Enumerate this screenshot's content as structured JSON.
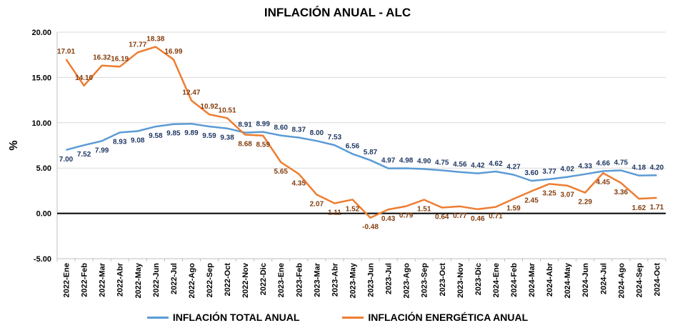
{
  "chart_data": {
    "type": "line",
    "title": "INFLACIÓN ANUAL - ALC",
    "ylabel": "%",
    "xlabel": "",
    "ylim": [
      -5,
      20
    ],
    "yticks": [
      "20.00",
      "15.00",
      "10.00",
      "5.00",
      "0.00",
      "-5.00"
    ],
    "categories": [
      "2022-Ene",
      "2022-Feb",
      "2022-Mar",
      "2022-Abr",
      "2022-May",
      "2022-Jun",
      "2022-Jul",
      "2022-Ago",
      "2022-Sep",
      "2022-Oct",
      "2022-Nov",
      "2022-Dic",
      "2023-Ene",
      "2023-Feb",
      "2023-Mar",
      "2023-Abr",
      "2023-May",
      "2023-Jun",
      "2023-Jul",
      "2023-Ago",
      "2023-Sep",
      "2023-Oct",
      "2023-Nov",
      "2023-Dic",
      "2024-Ene",
      "2024-Feb",
      "2024-Mar",
      "2024-Abr",
      "2024-May",
      "2024-Jun",
      "2024-Jul",
      "2024-Ago",
      "2024-Sep",
      "2024-Oct"
    ],
    "series": [
      {
        "name": "INFLACIÓN TOTAL ANUAL",
        "color": "#5B9BD5",
        "label_color": "#1F3864",
        "values": [
          7.0,
          7.52,
          7.99,
          8.93,
          9.08,
          9.58,
          9.85,
          9.89,
          9.59,
          9.38,
          8.91,
          8.99,
          8.6,
          8.37,
          8.0,
          7.53,
          6.56,
          5.87,
          4.97,
          4.98,
          4.9,
          4.75,
          4.56,
          4.42,
          4.62,
          4.27,
          3.6,
          3.77,
          4.02,
          4.33,
          4.66,
          4.75,
          4.18,
          4.2
        ],
        "labels": [
          "7.00",
          "7.52",
          "7.99",
          "8.93",
          "9.08",
          "9.58",
          "9.85",
          "9.89",
          "9.59",
          "9.38",
          "8.91",
          "8.99",
          "8.60",
          "8.37",
          "8.00",
          "7.53",
          "6.56",
          "5.87",
          "4.97",
          "4.98",
          "4.90",
          "4.75",
          "4.56",
          "4.42",
          "4.62",
          "4.27",
          "3.60",
          "3.77",
          "4.02",
          "4.33",
          "4.66",
          "4.75",
          "4.18",
          "4.20"
        ]
      },
      {
        "name": "INFLACIÓN ENERGÉTICA ANUAL",
        "color": "#ED7D31",
        "label_color": "#843C0C",
        "values": [
          17.01,
          14.1,
          16.32,
          16.19,
          17.77,
          18.38,
          16.99,
          12.47,
          10.92,
          10.51,
          8.68,
          8.59,
          5.65,
          4.35,
          2.07,
          1.11,
          1.52,
          -0.48,
          0.43,
          0.79,
          1.51,
          0.64,
          0.77,
          0.46,
          0.71,
          1.59,
          2.45,
          3.25,
          3.07,
          2.29,
          4.45,
          3.36,
          1.62,
          1.71
        ],
        "labels": [
          "17.01",
          "14.10",
          "16.32",
          "16.19",
          "17.77",
          "18.38",
          "16.99",
          "12.47",
          "10.92",
          "10.51",
          "8.68",
          "8.59",
          "5.65",
          "4.35",
          "2.07",
          "1.11",
          "1.52",
          "-0.48",
          "0.43",
          "0.79",
          "1.51",
          "0.64",
          "0.77",
          "0.46",
          "0.71",
          "1.59",
          "2.45",
          "3.25",
          "3.07",
          "2.29",
          "4.45",
          "3.36",
          "1.62",
          "1.71"
        ]
      }
    ],
    "grid": true,
    "zero_line": true,
    "legend_position": "bottom"
  }
}
